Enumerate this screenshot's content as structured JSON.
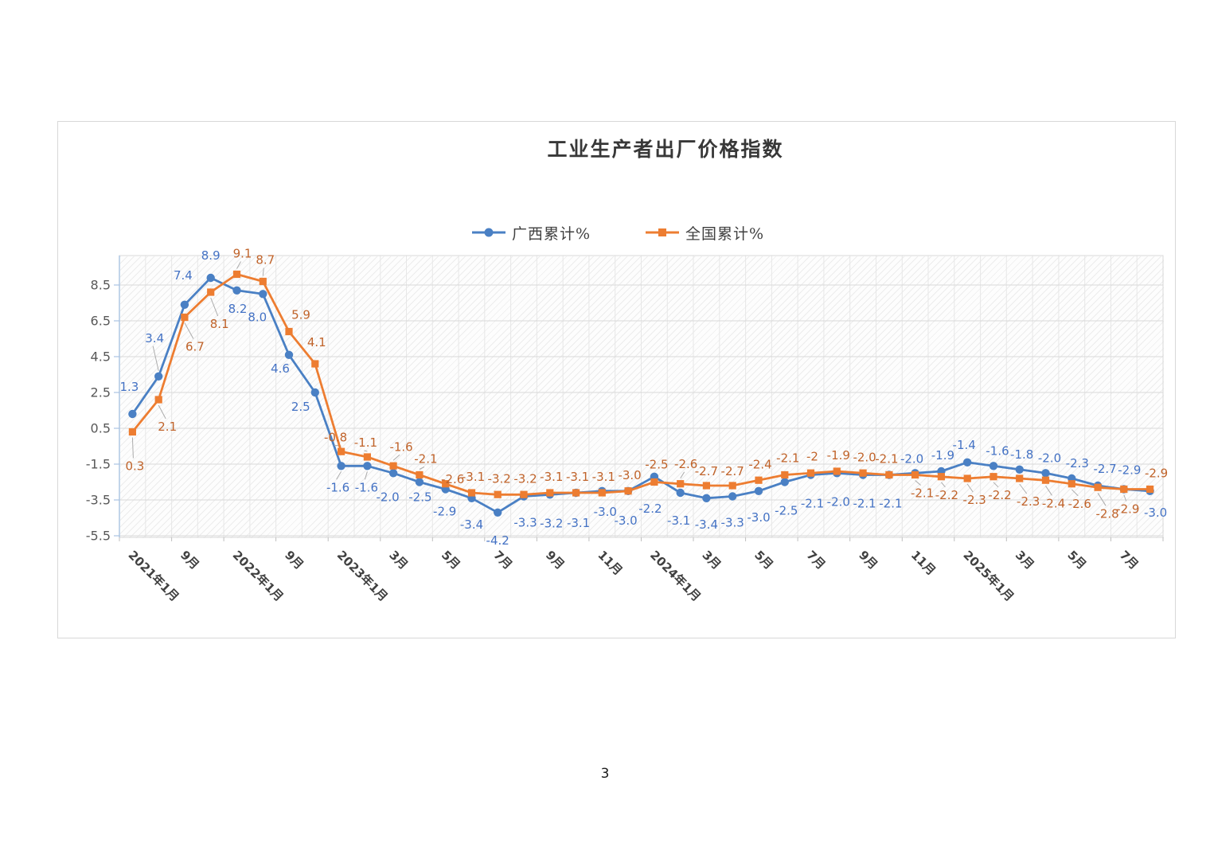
{
  "document": {
    "page_number": "3"
  },
  "chart": {
    "title": "工业生产者出厂价格指数"
  },
  "chart_data": {
    "type": "line",
    "title": "工业生产者出厂价格指数",
    "n_points": 40,
    "x_tick_every": 2,
    "x_tick_labels": [
      "2021年1月",
      "9月",
      "2022年1月",
      "9月",
      "2023年1月",
      "3月",
      "5月",
      "7月",
      "9月",
      "11月",
      "2024年1月",
      "3月",
      "5月",
      "7月",
      "9月",
      "11月",
      "2025年1月",
      "3月",
      "5月",
      "7月"
    ],
    "y_tick_labels": [
      "8.5",
      "6.5",
      "4.5",
      "2.5",
      "0.5",
      "-1.5",
      "-3.5",
      "-5.5"
    ],
    "y_ticks": [
      8.5,
      6.5,
      4.5,
      2.5,
      0.5,
      -1.5,
      -3.5,
      -5.5
    ],
    "ylim": [
      -5.6,
      10.1
    ],
    "grid": true,
    "legend_position": "top-center",
    "plot_background": "diagonal-hatch",
    "axis_color": "#a9c3e2",
    "gridline_color": "#d9d9d9",
    "series": [
      {
        "name": "广西累计%",
        "marker": "circle",
        "color": "#4a80c4",
        "label_color": "#4472c4",
        "values": [
          1.3,
          3.4,
          7.4,
          8.9,
          8.2,
          8.0,
          4.6,
          2.5,
          -1.6,
          -1.6,
          -2.0,
          -2.5,
          -2.9,
          -3.4,
          -4.2,
          -3.3,
          -3.2,
          -3.1,
          -3.0,
          -3.0,
          -2.2,
          -3.1,
          -3.4,
          -3.3,
          -3.0,
          -2.5,
          -2.1,
          -2.0,
          -2.1,
          -2.1,
          -2.0,
          -1.9,
          -1.4,
          -1.6,
          -1.8,
          -2.0,
          -2.3,
          -2.7,
          -2.9,
          -3.0
        ],
        "labels": [
          "1.3",
          "3.4",
          "7.4",
          "8.9",
          "8.2",
          "8.0",
          "4.6",
          "2.5",
          "-1.6",
          "-1.6",
          "-2.0",
          "-2.5",
          "-2.9",
          "-3.4",
          "-4.2",
          "-3.3",
          "-3.2",
          "-3.1",
          "-3.0",
          "-3.0",
          "-2.2",
          "-3.1",
          "-3.4",
          "-3.3",
          "-3.0",
          "-2.5",
          "-2.1",
          "-2.0",
          "-2.1",
          "-2.1",
          "-2.0",
          "-1.9",
          "-1.4",
          "-1.6",
          "-1.8",
          "-2.0",
          "-2.3",
          "-2.7",
          "-2.9",
          "-3.0"
        ],
        "label_offsets": [
          [
            -4,
            -34,
            0
          ],
          [
            -5,
            -48,
            1
          ],
          [
            -2,
            -37,
            0
          ],
          [
            0,
            -28,
            0
          ],
          [
            1,
            23,
            0
          ],
          [
            -7,
            29,
            0
          ],
          [
            -11,
            17,
            0
          ],
          [
            -18,
            18,
            0
          ],
          [
            -4,
            27,
            1
          ],
          [
            -1,
            27,
            1
          ],
          [
            -7,
            30,
            0
          ],
          [
            1,
            19,
            0
          ],
          [
            -1,
            28,
            0
          ],
          [
            0,
            33,
            0
          ],
          [
            0,
            35,
            0
          ],
          [
            2,
            33,
            0
          ],
          [
            2,
            36,
            0
          ],
          [
            3,
            38,
            0
          ],
          [
            4,
            26,
            0
          ],
          [
            -3,
            37,
            0
          ],
          [
            -5,
            40,
            0
          ],
          [
            -2,
            35,
            0
          ],
          [
            0,
            33,
            0
          ],
          [
            0,
            33,
            0
          ],
          [
            0,
            33,
            0
          ],
          [
            2,
            36,
            0
          ],
          [
            2,
            36,
            0
          ],
          [
            2,
            36,
            0
          ],
          [
            2,
            36,
            0
          ],
          [
            2,
            36,
            0
          ],
          [
            -4,
            -18,
            0
          ],
          [
            2,
            -20,
            0
          ],
          [
            -4,
            -22,
            0
          ],
          [
            5,
            -19,
            0
          ],
          [
            3,
            -19,
            0
          ],
          [
            5,
            -19,
            0
          ],
          [
            7,
            -19,
            0
          ],
          [
            9,
            -21,
            0
          ],
          [
            7,
            -24,
            0
          ],
          [
            7,
            27,
            0
          ]
        ]
      },
      {
        "name": "全国累计%",
        "marker": "square",
        "color": "#ed7d31",
        "label_color": "#c0632a",
        "values": [
          0.3,
          2.1,
          6.7,
          8.1,
          9.1,
          8.7,
          5.9,
          4.1,
          -0.8,
          -1.1,
          -1.6,
          -2.1,
          -2.6,
          -3.1,
          -3.2,
          -3.2,
          -3.1,
          -3.1,
          -3.1,
          -3.0,
          -2.5,
          -2.6,
          -2.7,
          -2.7,
          -2.4,
          -2.1,
          -2.0,
          -1.9,
          -2.0,
          -2.1,
          -2.1,
          -2.2,
          -2.3,
          -2.2,
          -2.3,
          -2.4,
          -2.6,
          -2.8,
          -2.9,
          -2.9
        ],
        "labels": [
          "0.3",
          "2.1",
          "6.7",
          "8.1",
          "9.1",
          "8.7",
          "5.9",
          "4.1",
          "-0.8",
          "-1.1",
          "-1.6",
          "-2.1",
          "-2.6",
          "-3.1",
          "-3.2",
          "-3.2",
          "-3.1",
          "-3.1",
          "-3.1",
          "-3.0",
          "-2.5",
          "-2.6",
          "-2.7",
          "-2.7",
          "-2.4",
          "-2.1",
          "-2",
          "-1.9",
          "-2.0",
          "-2.1",
          "-2.1",
          "-2.2",
          "-2.3",
          "-2.2",
          "-2.3",
          "-2.4",
          "-2.6",
          "-2.8",
          "-2.9",
          "-2.9"
        ],
        "label_offsets": [
          [
            3,
            43,
            1
          ],
          [
            11,
            34,
            1
          ],
          [
            13,
            37,
            1
          ],
          [
            11,
            40,
            1
          ],
          [
            7,
            -26,
            1
          ],
          [
            3,
            -27,
            1
          ],
          [
            15,
            -21,
            0
          ],
          [
            2,
            -27,
            0
          ],
          [
            -7,
            -18,
            1
          ],
          [
            -2,
            -18,
            1
          ],
          [
            10,
            -24,
            1
          ],
          [
            8,
            -20,
            1
          ],
          [
            9,
            -6,
            0
          ],
          [
            2,
            -20,
            0
          ],
          [
            2,
            -20,
            0
          ],
          [
            2,
            -20,
            0
          ],
          [
            2,
            -20,
            0
          ],
          [
            2,
            -20,
            0
          ],
          [
            2,
            -20,
            0
          ],
          [
            2,
            -20,
            0
          ],
          [
            3,
            -22,
            0
          ],
          [
            7,
            -25,
            1
          ],
          [
            0,
            -18,
            0
          ],
          [
            0,
            -18,
            0
          ],
          [
            2,
            -20,
            0
          ],
          [
            4,
            -21,
            0
          ],
          [
            2,
            -21,
            0
          ],
          [
            2,
            -20,
            0
          ],
          [
            2,
            -20,
            0
          ],
          [
            -3,
            -20,
            0
          ],
          [
            9,
            23,
            1
          ],
          [
            7,
            23,
            1
          ],
          [
            9,
            27,
            1
          ],
          [
            8,
            23,
            1
          ],
          [
            11,
            29,
            1
          ],
          [
            10,
            29,
            1
          ],
          [
            10,
            25,
            1
          ],
          [
            12,
            33,
            1
          ],
          [
            5,
            25,
            1
          ],
          [
            8,
            -20,
            0
          ]
        ]
      }
    ]
  }
}
